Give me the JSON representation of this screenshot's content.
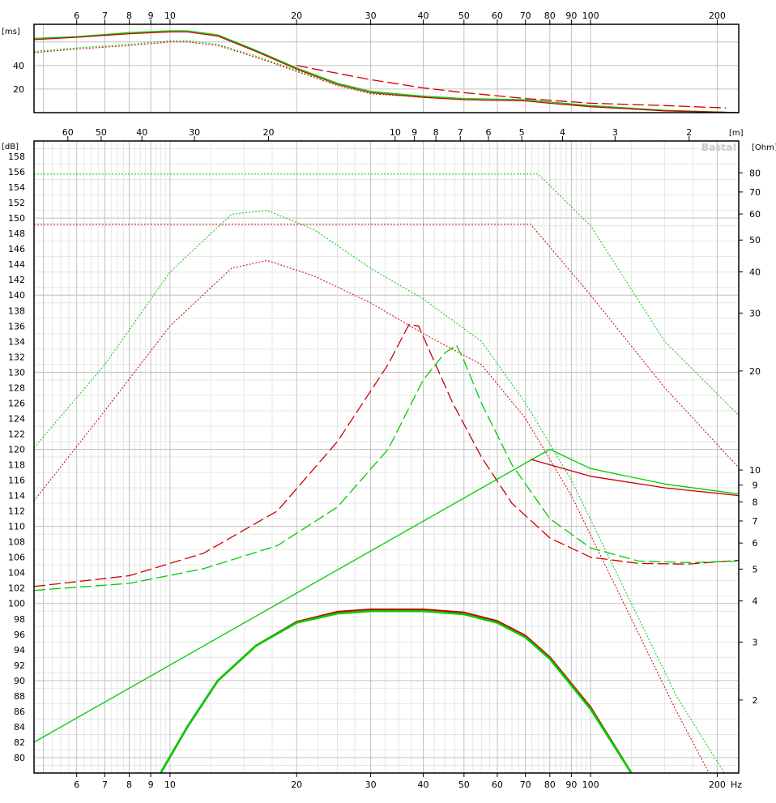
{
  "watermark": "Basta!",
  "units": {
    "delay": "[ms]",
    "spl": "[dB]",
    "impedance": "[Ohm]",
    "wavelength": "[m]",
    "frequency": "Hz"
  },
  "colors": {
    "series_red": "#cc0000",
    "series_green": "#00cc00",
    "grid_major": "#c0c0c0",
    "grid_minor": "#e6e6e6",
    "frame": "#000000"
  },
  "chart_data": [
    {
      "type": "line",
      "title": "",
      "xscale": "log",
      "xlim": [
        4.75,
        225
      ],
      "ylim": [
        0,
        75
      ],
      "ylabel": "[ms]",
      "x_tick_labels": [
        "6",
        "7",
        "8",
        "9",
        "10",
        "20",
        "30",
        "40",
        "50",
        "60",
        "70",
        "80",
        "90",
        "100",
        "200"
      ],
      "y_tick_labels": [
        "20",
        "40"
      ],
      "grid": true,
      "series": [
        {
          "style": "solid",
          "color": "green",
          "points": [
            [
              4.75,
              63
            ],
            [
              6,
              64.5
            ],
            [
              8,
              68
            ],
            [
              10,
              69.5
            ],
            [
              11,
              69.5
            ],
            [
              13,
              66
            ],
            [
              16,
              53
            ],
            [
              20,
              38
            ],
            [
              25,
              25
            ],
            [
              30,
              18
            ],
            [
              40,
              14
            ],
            [
              50,
              12
            ],
            [
              70,
              11
            ],
            [
              80,
              9
            ],
            [
              100,
              6
            ],
            [
              150,
              2
            ],
            [
              225,
              0
            ]
          ]
        },
        {
          "style": "solid",
          "color": "red",
          "points": [
            [
              4.75,
              62
            ],
            [
              6,
              64
            ],
            [
              8,
              67
            ],
            [
              10,
              68.5
            ],
            [
              11,
              68.5
            ],
            [
              13,
              65
            ],
            [
              16,
              52
            ],
            [
              20,
              37
            ],
            [
              25,
              24
            ],
            [
              30,
              17
            ],
            [
              40,
              13
            ],
            [
              50,
              11
            ],
            [
              70,
              10
            ],
            [
              80,
              8
            ],
            [
              100,
              5
            ],
            [
              150,
              1.5
            ],
            [
              225,
              0
            ]
          ]
        },
        {
          "style": "dotted",
          "color": "green",
          "points": [
            [
              4.75,
              52
            ],
            [
              6,
              55
            ],
            [
              8,
              58
            ],
            [
              10,
              61
            ],
            [
              11,
              61
            ],
            [
              13,
              58
            ],
            [
              16,
              48
            ],
            [
              20,
              36
            ],
            [
              25,
              24
            ],
            [
              30,
              17
            ],
            [
              40,
              14
            ],
            [
              50,
              12
            ]
          ]
        },
        {
          "style": "dotted",
          "color": "red",
          "points": [
            [
              4.75,
              51
            ],
            [
              6,
              54
            ],
            [
              8,
              57
            ],
            [
              10,
              60
            ],
            [
              11,
              60
            ],
            [
              13,
              57
            ],
            [
              16,
              47
            ],
            [
              20,
              35
            ],
            [
              25,
              23
            ],
            [
              30,
              16
            ],
            [
              40,
              13
            ],
            [
              50,
              11
            ]
          ]
        },
        {
          "style": "dashed",
          "color": "red",
          "points": [
            [
              20,
              40
            ],
            [
              30,
              28
            ],
            [
              40,
              21
            ],
            [
              50,
              17
            ],
            [
              70,
              12
            ],
            [
              100,
              8
            ],
            [
              150,
              6
            ],
            [
              210,
              4
            ]
          ]
        }
      ]
    },
    {
      "type": "line",
      "title": "",
      "xscale": "log",
      "xlim": [
        4.75,
        225
      ],
      "ylim": [
        78,
        160
      ],
      "ylabel": "[dB]",
      "y2label": "[Ohm]",
      "x_tick_labels": [
        "6",
        "7",
        "8",
        "9",
        "10",
        "20",
        "30",
        "40",
        "50",
        "60",
        "70",
        "80",
        "90",
        "100",
        "200"
      ],
      "y_tick_labels": [
        "80",
        "82",
        "84",
        "86",
        "88",
        "90",
        "92",
        "94",
        "96",
        "98",
        "100",
        "102",
        "104",
        "106",
        "108",
        "110",
        "112",
        "114",
        "116",
        "118",
        "120",
        "122",
        "124",
        "126",
        "128",
        "130",
        "132",
        "134",
        "136",
        "138",
        "140",
        "142",
        "144",
        "146",
        "148",
        "150",
        "152",
        "154",
        "156",
        "158"
      ],
      "y2_tick_labels": [
        "2",
        "3",
        "4",
        "5",
        "6",
        "7",
        "8",
        "9",
        "10",
        "20",
        "30",
        "40",
        "50",
        "60",
        "70",
        "80"
      ],
      "wavelength_tick_labels": [
        "60",
        "50",
        "40",
        "30",
        "20",
        "10",
        "9",
        "8",
        "7",
        "6",
        "5",
        "4",
        "3",
        "2"
      ],
      "grid": true,
      "series": [
        {
          "style": "dotted",
          "color": "green",
          "points": [
            [
              4.75,
              120.2
            ],
            [
              7,
              131
            ],
            [
              10,
              143
            ],
            [
              14,
              150.5
            ],
            [
              17,
              151
            ],
            [
              22,
              148.5
            ],
            [
              30,
              143.5
            ],
            [
              40,
              139.5
            ],
            [
              55,
              134
            ],
            [
              70,
              126
            ],
            [
              90,
              116
            ],
            [
              120,
              102
            ],
            [
              160,
              88
            ],
            [
              225,
              75
            ]
          ]
        },
        {
          "style": "dotted",
          "color": "red",
          "points": [
            [
              4.75,
              113.3
            ],
            [
              7,
              125
            ],
            [
              10,
              136
            ],
            [
              14,
              143.5
            ],
            [
              17,
              144.5
            ],
            [
              22,
              142.5
            ],
            [
              30,
              139
            ],
            [
              40,
              135
            ],
            [
              55,
              131
            ],
            [
              70,
              124
            ],
            [
              90,
              114
            ],
            [
              120,
              100
            ],
            [
              160,
              86
            ],
            [
              200,
              76
            ]
          ]
        },
        {
          "style": "dotted",
          "color": "green",
          "points": [
            [
              4.75,
              155.7
            ],
            [
              75,
              155.7
            ],
            [
              100,
              149
            ],
            [
              150,
              134
            ],
            [
              225,
              124.4
            ]
          ]
        },
        {
          "style": "dotted",
          "color": "red",
          "points": [
            [
              4.75,
              149.2
            ],
            [
              72,
              149.2
            ],
            [
              100,
              140
            ],
            [
              150,
              128
            ],
            [
              225,
              117.6
            ]
          ]
        },
        {
          "style": "dashed",
          "color": "red",
          "points": [
            [
              4.75,
              102.2
            ],
            [
              8,
              103.6
            ],
            [
              12,
              106.5
            ],
            [
              18,
              112
            ],
            [
              25,
              121
            ],
            [
              33,
              131
            ],
            [
              37,
              136.2
            ],
            [
              39,
              136
            ],
            [
              42,
              132
            ],
            [
              47,
              126
            ],
            [
              55,
              119
            ],
            [
              65,
              113
            ],
            [
              80,
              108.5
            ],
            [
              100,
              106
            ],
            [
              130,
              105.2
            ],
            [
              170,
              105.1
            ],
            [
              225,
              105.6
            ]
          ]
        },
        {
          "style": "dashed",
          "color": "green",
          "points": [
            [
              4.75,
              101.7
            ],
            [
              8,
              102.6
            ],
            [
              12,
              104.5
            ],
            [
              18,
              107.5
            ],
            [
              25,
              112.5
            ],
            [
              33,
              120
            ],
            [
              40,
              129
            ],
            [
              45,
              132.5
            ],
            [
              48,
              133.5
            ],
            [
              50,
              131.5
            ],
            [
              55,
              126
            ],
            [
              65,
              118
            ],
            [
              80,
              111
            ],
            [
              100,
              107.2
            ],
            [
              130,
              105.5
            ],
            [
              170,
              105.3
            ],
            [
              225,
              105.5
            ]
          ]
        },
        {
          "style": "solid",
          "color": "green",
          "points": [
            [
              4.75,
              82
            ],
            [
              80,
              120
            ],
            [
              100,
              117.5
            ],
            [
              150,
              115.5
            ],
            [
              225,
              114.2
            ]
          ]
        },
        {
          "style": "solid",
          "color": "red",
          "points": [
            [
              72,
              118.7
            ],
            [
              100,
              116.5
            ],
            [
              150,
              115
            ],
            [
              225,
              114
            ]
          ]
        },
        {
          "style": "thick",
          "color": "red",
          "points": [
            [
              9.5,
              78
            ],
            [
              11,
              84
            ],
            [
              13,
              90
            ],
            [
              16,
              94.5
            ],
            [
              20,
              97.6
            ],
            [
              25,
              98.9
            ],
            [
              30,
              99.2
            ],
            [
              40,
              99.2
            ],
            [
              50,
              98.8
            ],
            [
              60,
              97.7
            ],
            [
              70,
              95.8
            ],
            [
              80,
              93
            ],
            [
              100,
              86.5
            ],
            [
              125,
              78
            ]
          ]
        },
        {
          "style": "thick",
          "color": "green",
          "points": [
            [
              9.5,
              78
            ],
            [
              11,
              84
            ],
            [
              13,
              90
            ],
            [
              16,
              94.5
            ],
            [
              20,
              97.5
            ],
            [
              25,
              98.7
            ],
            [
              30,
              99
            ],
            [
              40,
              99
            ],
            [
              50,
              98.6
            ],
            [
              60,
              97.5
            ],
            [
              70,
              95.6
            ],
            [
              80,
              92.8
            ],
            [
              100,
              86.3
            ],
            [
              125,
              78
            ]
          ]
        }
      ]
    }
  ]
}
